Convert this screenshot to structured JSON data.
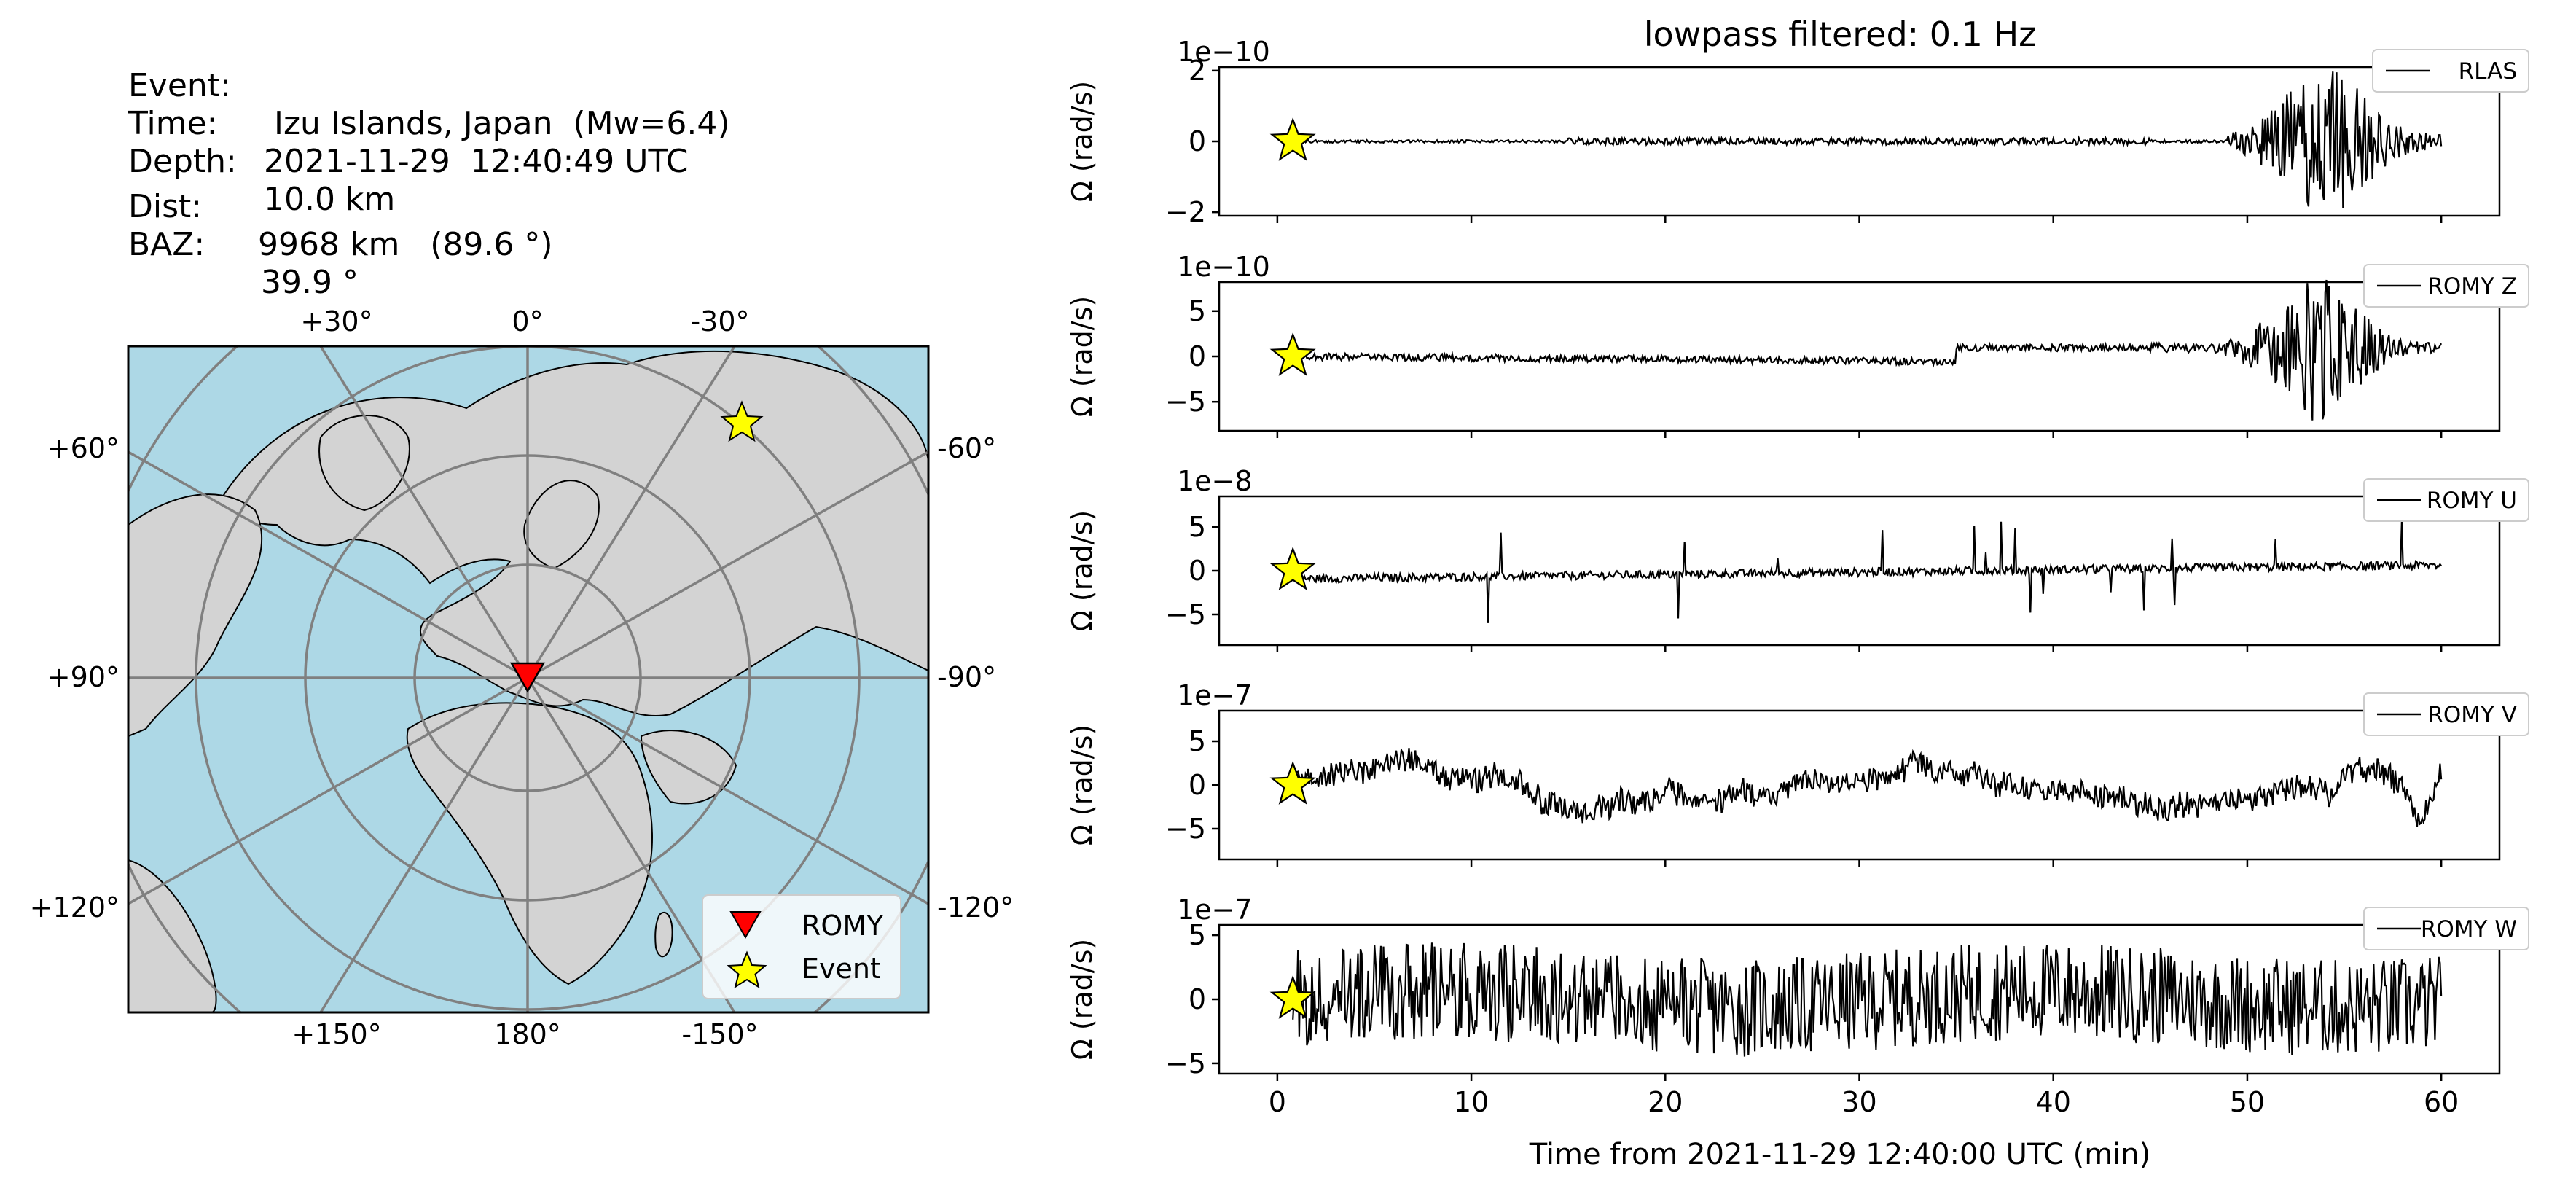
{
  "event_info": {
    "event_label": "Event:",
    "event_value": " Izu Islands, Japan  (Mw=6.4)",
    "time_label": "Time:",
    "time_value": "2021-11-29  12:40:49 UTC",
    "depth_label": "Depth:",
    "depth_value": "10.0 km",
    "dist_label": "Dist:",
    "dist_value": "9968 km   (89.6 °)",
    "baz_label": "BAZ:",
    "baz_value": "39.9 °"
  },
  "map": {
    "ocean_color": "#add8e6",
    "land_color": "#d3d3d3",
    "top_labels": [
      "+30°",
      "0°",
      "-30°"
    ],
    "bottom_labels": [
      "+150°",
      "180°",
      "-150°"
    ],
    "left_labels": [
      "+60°",
      "+90°",
      "+120°"
    ],
    "right_labels": [
      "-60°",
      "-90°",
      "-120°"
    ],
    "legend": [
      {
        "label": "ROMY",
        "marker": "down-triangle",
        "color": "#ff0000"
      },
      {
        "label": "Event",
        "marker": "star",
        "color": "#ffff00"
      }
    ]
  },
  "chart_data": {
    "type": "line",
    "title": "lowpass filtered: 0.1 Hz",
    "xlabel": "Time from 2021-11-29 12:40:00 UTC (min)",
    "xlim": [
      -3,
      63
    ],
    "xticks": [
      0,
      10,
      20,
      30,
      40,
      50,
      60
    ],
    "event_time_min": 0.8,
    "series": [
      {
        "name": "RLAS",
        "ylabel": "Ω (rad/s)",
        "offset_text": "1e−10",
        "ylim": [
          -2.1,
          2.1
        ],
        "yticks": [
          -2,
          0,
          2
        ],
        "ytick_labels": [
          "−2",
          "0",
          "2"
        ],
        "peak_amplitude": 2.0,
        "line_color": "#000000"
      },
      {
        "name": "ROMY Z",
        "ylabel": "Ω (rad/s)",
        "offset_text": "1e−10",
        "ylim": [
          -8.2,
          8.2
        ],
        "yticks": [
          -5,
          0,
          5
        ],
        "ytick_labels": [
          "−5",
          "0",
          "5"
        ],
        "peak_amplitude": 8.0,
        "line_color": "#000000"
      },
      {
        "name": "ROMY U",
        "ylabel": "Ω (rad/s)",
        "offset_text": "1e−8",
        "ylim": [
          -8.5,
          8.5
        ],
        "yticks": [
          -5,
          0,
          5
        ],
        "ytick_labels": [
          "−5",
          "0",
          "5"
        ],
        "peak_amplitude": 8.0,
        "line_color": "#000000"
      },
      {
        "name": "ROMY V",
        "ylabel": "Ω (rad/s)",
        "offset_text": "1e−7",
        "ylim": [
          -8.5,
          8.5
        ],
        "yticks": [
          -5,
          0,
          5
        ],
        "ytick_labels": [
          "−5",
          "0",
          "5"
        ],
        "peak_amplitude": 6.0,
        "line_color": "#000000"
      },
      {
        "name": "ROMY W",
        "ylabel": "Ω (rad/s)",
        "offset_text": "1e−7",
        "ylim": [
          -5.8,
          5.8
        ],
        "yticks": [
          -5,
          0,
          5
        ],
        "ytick_labels": [
          "−5",
          "0",
          "5"
        ],
        "peak_amplitude": 5.5,
        "line_color": "#000000"
      }
    ]
  }
}
